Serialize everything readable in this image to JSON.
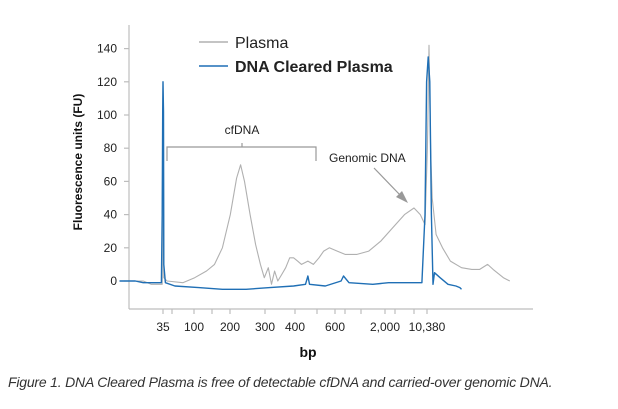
{
  "chart_data": {
    "type": "line",
    "title": "",
    "xlabel": "bp",
    "ylabel": "Fluorescence units (FU)",
    "ylim": [
      -20,
      150
    ],
    "y_ticks": [
      0,
      20,
      40,
      60,
      80,
      100,
      120,
      140
    ],
    "x_scale": "categorical-ladder",
    "x_tick_labels": [
      "35",
      "100",
      "200",
      "300",
      "400",
      "600",
      "2,000",
      "10,380"
    ],
    "x_ticks_all": [
      "35",
      "50",
      "100",
      "150",
      "200",
      "300",
      "400",
      "500",
      "600",
      "700",
      "1,000",
      "2,000",
      "3,000",
      "7,000",
      "10,380"
    ],
    "legend_position": "top-center",
    "series": [
      {
        "name": "Plasma",
        "color": "#b0b0b0",
        "points": [
          [
            -20,
            0
          ],
          [
            0,
            0
          ],
          [
            10,
            0
          ],
          [
            20,
            -2
          ],
          [
            34,
            -2
          ],
          [
            34.5,
            75
          ],
          [
            35,
            120
          ],
          [
            35.5,
            75
          ],
          [
            36,
            2
          ],
          [
            40,
            0
          ],
          [
            60,
            -1
          ],
          [
            75,
            2
          ],
          [
            90,
            6
          ],
          [
            100,
            10
          ],
          [
            110,
            20
          ],
          [
            120,
            40
          ],
          [
            128,
            62
          ],
          [
            133,
            70
          ],
          [
            138,
            60
          ],
          [
            145,
            40
          ],
          [
            152,
            22
          ],
          [
            158,
            10
          ],
          [
            163,
            2
          ],
          [
            168,
            8
          ],
          [
            172,
            -2
          ],
          [
            176,
            6
          ],
          [
            180,
            0
          ],
          [
            185,
            4
          ],
          [
            190,
            8
          ],
          [
            195,
            14
          ],
          [
            200,
            14
          ],
          [
            205,
            12
          ],
          [
            210,
            10
          ],
          [
            218,
            12
          ],
          [
            225,
            10
          ],
          [
            232,
            14
          ],
          [
            238,
            18
          ],
          [
            245,
            20
          ],
          [
            255,
            18
          ],
          [
            265,
            16
          ],
          [
            280,
            16
          ],
          [
            295,
            18
          ],
          [
            310,
            24
          ],
          [
            325,
            32
          ],
          [
            340,
            40
          ],
          [
            352,
            44
          ],
          [
            360,
            40
          ],
          [
            366,
            34
          ],
          [
            369,
            80
          ],
          [
            371,
            142
          ],
          [
            373,
            80
          ],
          [
            375,
            50
          ],
          [
            380,
            28
          ],
          [
            388,
            20
          ],
          [
            398,
            12
          ],
          [
            412,
            8
          ],
          [
            425,
            7
          ],
          [
            435,
            7
          ],
          [
            445,
            10
          ],
          [
            452,
            7
          ],
          [
            465,
            2
          ],
          [
            473,
            0
          ]
        ]
      },
      {
        "name": "DNA Cleared Plasma",
        "color": "#1f6fb5",
        "points": [
          [
            -20,
            0
          ],
          [
            0,
            0
          ],
          [
            10,
            -1
          ],
          [
            20,
            -1
          ],
          [
            33,
            -1
          ],
          [
            34,
            40
          ],
          [
            34.6,
            102
          ],
          [
            35,
            120
          ],
          [
            35.6,
            102
          ],
          [
            36,
            10
          ],
          [
            38,
            -1
          ],
          [
            50,
            -3
          ],
          [
            80,
            -4
          ],
          [
            110,
            -5
          ],
          [
            140,
            -5
          ],
          [
            170,
            -4
          ],
          [
            200,
            -3
          ],
          [
            215,
            -2
          ],
          [
            218,
            3
          ],
          [
            220,
            -2
          ],
          [
            240,
            -3
          ],
          [
            260,
            0
          ],
          [
            263,
            3
          ],
          [
            270,
            -1
          ],
          [
            300,
            -2
          ],
          [
            320,
            -1
          ],
          [
            340,
            -1
          ],
          [
            362,
            -1
          ],
          [
            366,
            40
          ],
          [
            368,
            120
          ],
          [
            370,
            135
          ],
          [
            372,
            120
          ],
          [
            374,
            40
          ],
          [
            376,
            -2
          ],
          [
            378,
            5
          ],
          [
            385,
            2
          ],
          [
            395,
            -2
          ],
          [
            405,
            -3
          ],
          [
            410,
            -4
          ],
          [
            412,
            -5
          ]
        ]
      }
    ],
    "legend": [
      {
        "label": "Plasma",
        "color": "#b0b0b0",
        "bold": false
      },
      {
        "label": "DNA Cleared Plasma",
        "color": "#1f6fb5",
        "bold": true
      }
    ],
    "annotations": [
      {
        "text": "cfDNA",
        "type": "bracket"
      },
      {
        "text": "Genomic DNA",
        "type": "arrow"
      }
    ]
  },
  "caption": "Figure 1. DNA Cleared Plasma is free of detectable cfDNA and carried-over genomic DNA."
}
